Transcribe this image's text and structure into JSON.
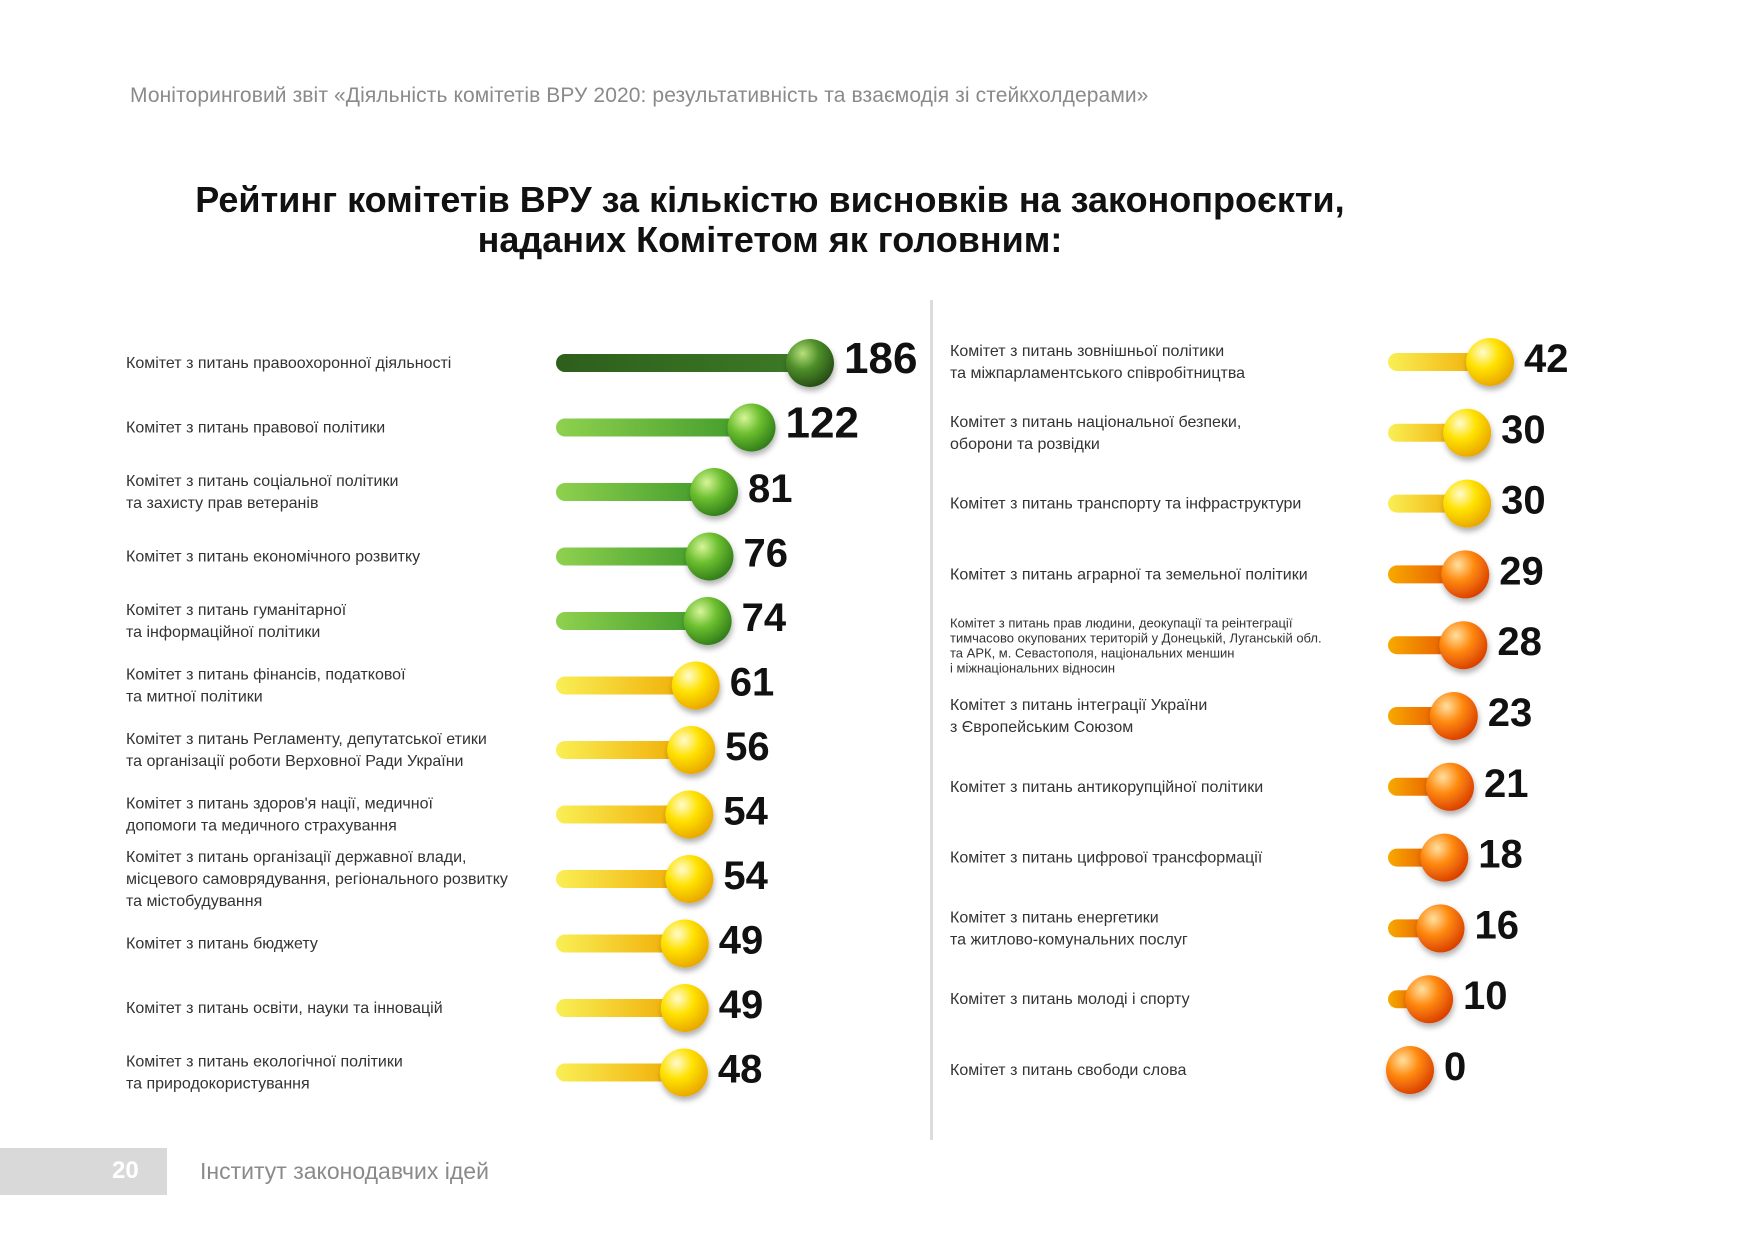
{
  "header": {
    "report_title": "Моніторинговий звіт «Діяльність комітетів ВРУ 2020: результативність та взаємодія зі стейкхолдерами»"
  },
  "chart_data": {
    "type": "bar",
    "title_lines": [
      "Рейтинг комітетів ВРУ за кількістю висновків на законопроєкти,",
      "наданих Комітетом як головним:"
    ],
    "legend": "none",
    "grid": false,
    "colors": {
      "dark_green": "#2f6b1f",
      "green": "#5aa82a",
      "yellow": "#f2cf00",
      "orange": "#f07a00"
    },
    "left_column": [
      {
        "label": [
          "Комітет з питань правоохоронної діяльності"
        ],
        "value": 186,
        "color": "dark_green"
      },
      {
        "label": [
          "Комітет з питань правової політики"
        ],
        "value": 122,
        "color": "green"
      },
      {
        "label": [
          "Комітет з питань соціальної політики",
          "та захисту прав ветеранів"
        ],
        "value": 81,
        "color": "green"
      },
      {
        "label": [
          "Комітет з питань економічного розвитку"
        ],
        "value": 76,
        "color": "green"
      },
      {
        "label": [
          "Комітет з питань гуманітарної",
          "та інформаційної політики"
        ],
        "value": 74,
        "color": "green"
      },
      {
        "label": [
          "Комітет з питань фінансів, податкової",
          "та митної політики"
        ],
        "value": 61,
        "color": "yellow"
      },
      {
        "label": [
          "Комітет з питань Регламенту, депутатської етики",
          "та організації роботи Верховної Ради України"
        ],
        "value": 56,
        "color": "yellow"
      },
      {
        "label": [
          "Комітет з питань здоров'я нації, медичної",
          "допомоги та медичного страхування"
        ],
        "value": 54,
        "color": "yellow"
      },
      {
        "label": [
          "Комітет з питань організації державної влади,",
          "місцевого самоврядування, регіонального розвитку",
          "та містобудування"
        ],
        "value": 54,
        "color": "yellow"
      },
      {
        "label": [
          "Комітет з питань бюджету"
        ],
        "value": 49,
        "color": "yellow"
      },
      {
        "label": [
          "Комітет з питань освіти, науки та інновацій"
        ],
        "value": 49,
        "color": "yellow"
      },
      {
        "label": [
          "Комітет з питань екологічної політики",
          "та природокористування"
        ],
        "value": 48,
        "color": "yellow"
      }
    ],
    "right_column": [
      {
        "label": [
          "Комітет з питань зовнішньої політики",
          "та міжпарламентського співробітництва"
        ],
        "value": 42,
        "color": "yellow"
      },
      {
        "label": [
          "Комітет з питань національної безпеки,",
          "оборони та розвідки"
        ],
        "value": 30,
        "color": "yellow"
      },
      {
        "label": [
          "Комітет з питань транспорту та інфраструктури"
        ],
        "value": 30,
        "color": "yellow"
      },
      {
        "label": [
          "Комітет з питань аграрної та земельної політики"
        ],
        "value": 29,
        "color": "orange"
      },
      {
        "label": [
          "Комітет з питань прав людини, деокупації та реінтеграції",
          "тимчасово окупованих територій у Донецькій, Луганській обл.",
          "та АРК, м. Севастополя, національних меншин",
          "і міжнаціональних відносин"
        ],
        "value": 28,
        "color": "orange"
      },
      {
        "label": [
          "Комітет з питань інтеграції України",
          "з Європейським Союзом"
        ],
        "value": 23,
        "color": "orange"
      },
      {
        "label": [
          "Комітет з питань антикорупційної політики"
        ],
        "value": 21,
        "color": "orange"
      },
      {
        "label": [
          "Комітет з питань цифрової трансформації"
        ],
        "value": 18,
        "color": "orange"
      },
      {
        "label": [
          "Комітет з питань енергетики",
          "та житлово-комунальних послуг"
        ],
        "value": 16,
        "color": "orange"
      },
      {
        "label": [
          "Комітет з питань молоді і спорту"
        ],
        "value": 10,
        "color": "orange"
      },
      {
        "label": [
          "Комітет з питань свободи слова"
        ],
        "value": 0,
        "color": "orange"
      }
    ]
  },
  "footer": {
    "page_number": "20",
    "publisher": "Інститут законодавчих ідей"
  }
}
